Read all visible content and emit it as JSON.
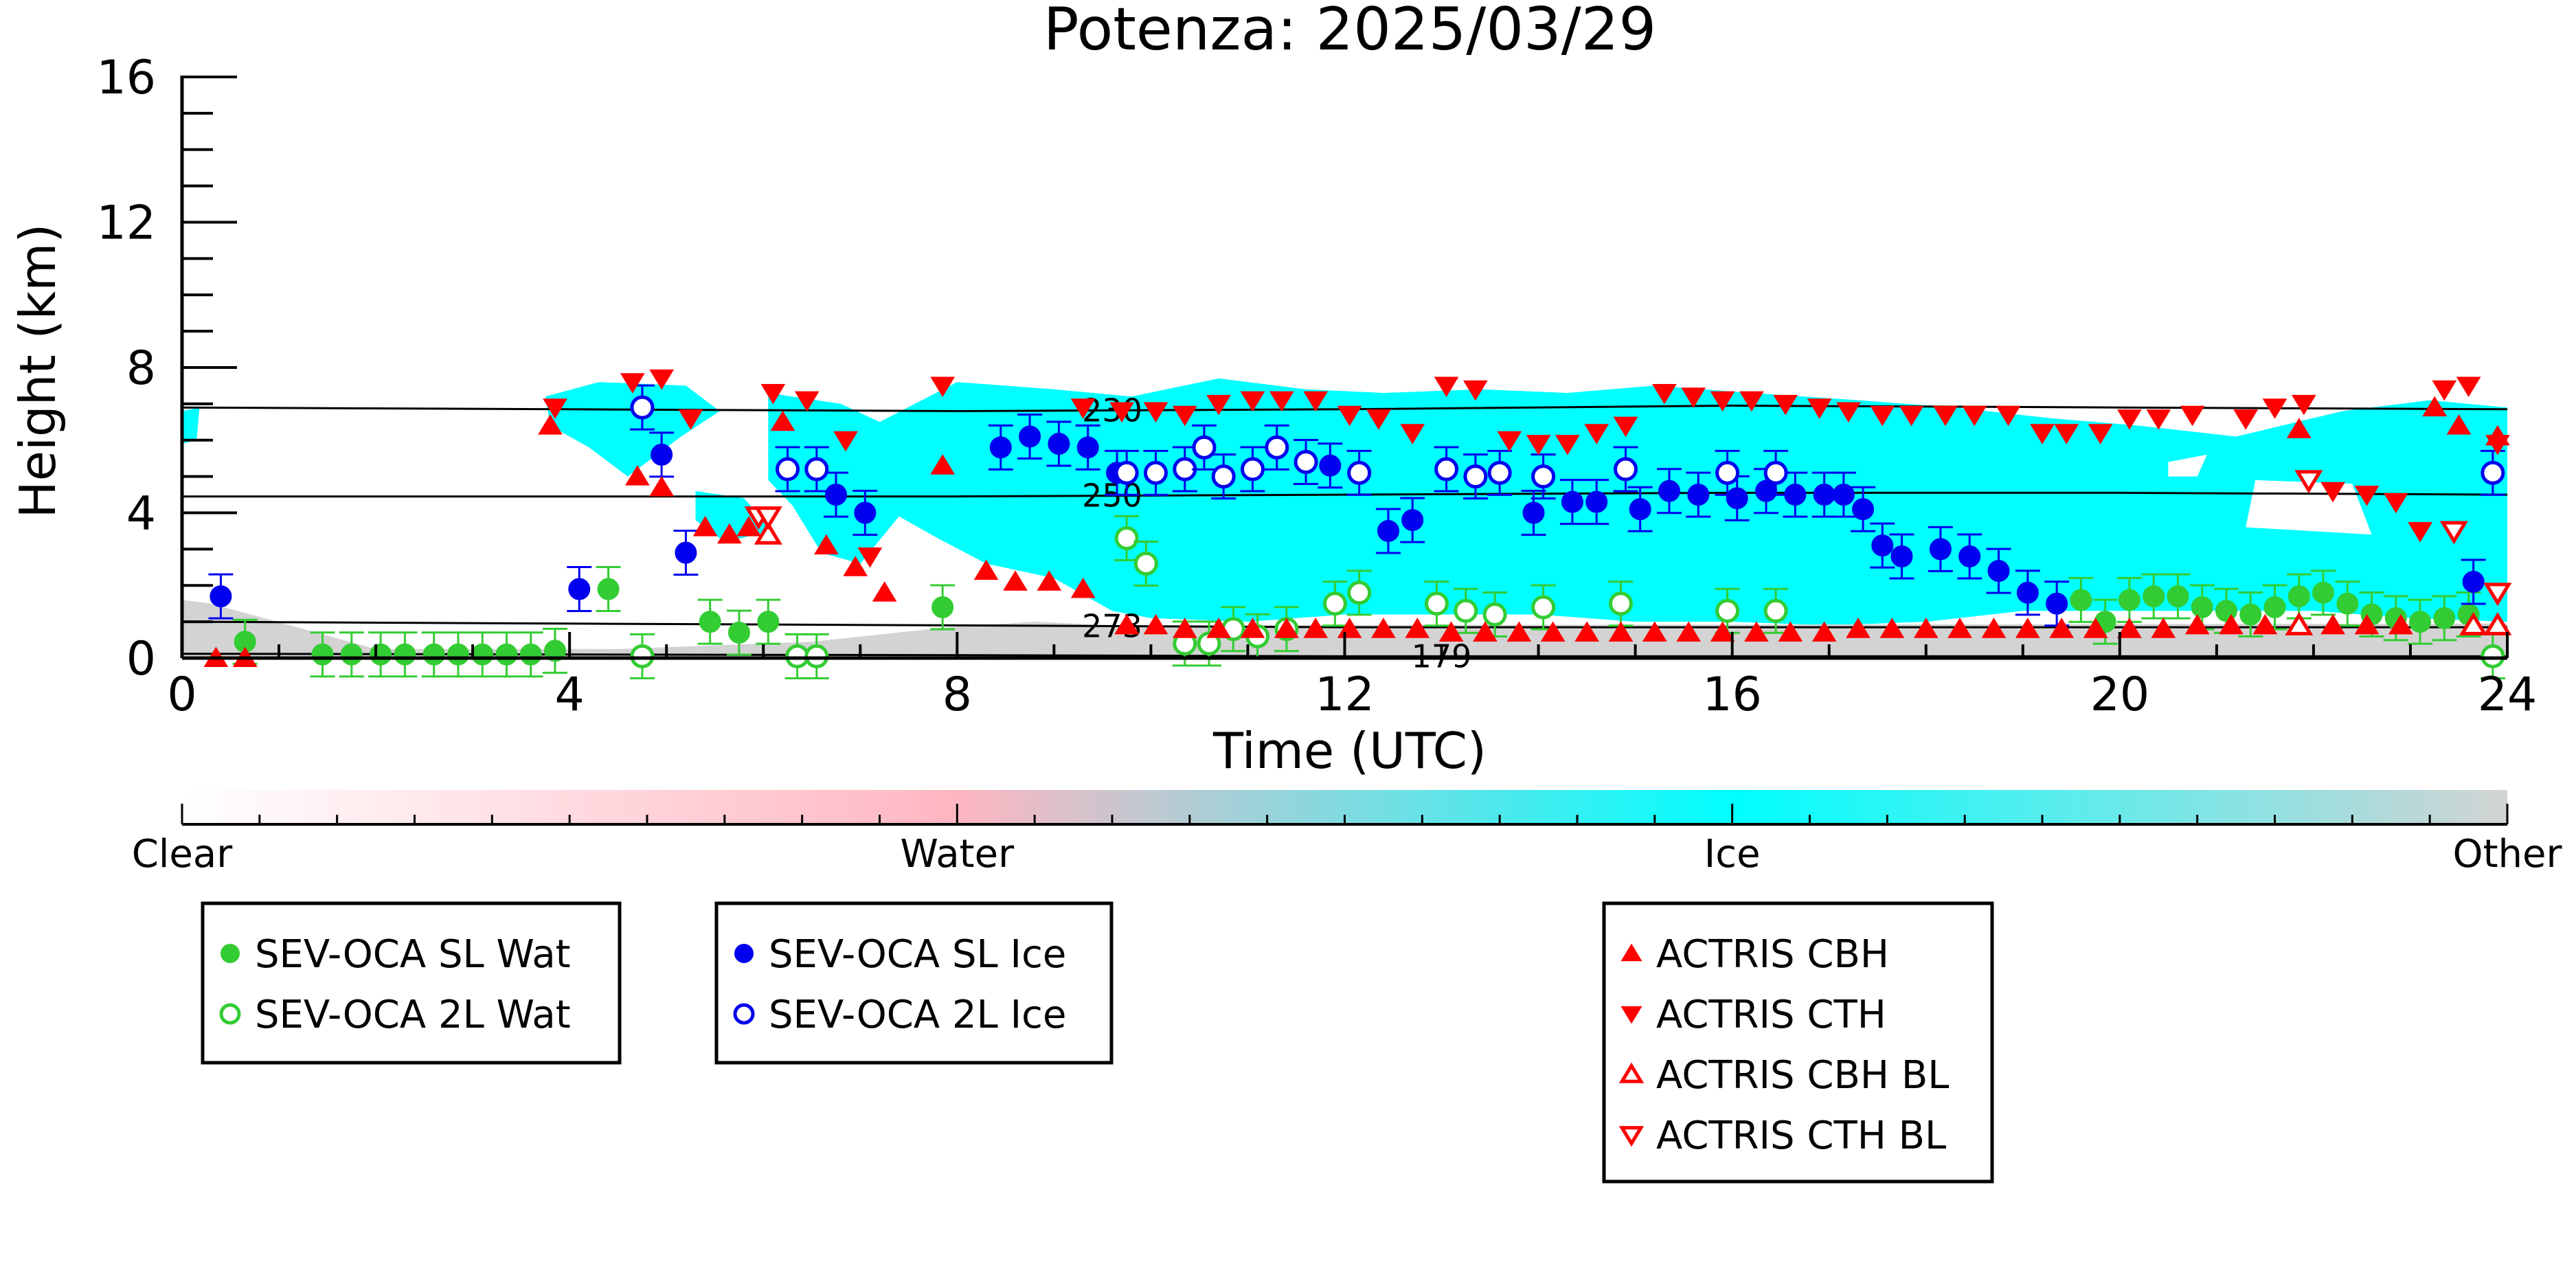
{
  "chart_data": {
    "type": "scatter",
    "title": "Potenza: 2025/03/29",
    "xlabel": "Time (UTC)",
    "ylabel": "Height (km)",
    "xlim": [
      0,
      24
    ],
    "ylim": [
      0,
      16
    ],
    "xticks": [
      0,
      4,
      8,
      12,
      16,
      20,
      24
    ],
    "yticks": [
      0,
      4,
      8,
      12,
      16
    ],
    "background": "cloud phase classification (Clear / Water / Ice / Other) shaded behind the markers",
    "isotherms": [
      {
        "label": "230",
        "label_x": 9.6,
        "x": [
          0,
          4,
          8,
          12,
          16,
          20,
          24
        ],
        "y": [
          6.9,
          6.85,
          6.8,
          6.85,
          6.95,
          6.9,
          6.85
        ]
      },
      {
        "label": "250",
        "label_x": 9.6,
        "x": [
          0,
          4,
          8,
          12,
          16,
          20,
          24
        ],
        "y": [
          4.45,
          4.45,
          4.45,
          4.5,
          4.55,
          4.55,
          4.5
        ]
      },
      {
        "label": "273",
        "label_x": 9.6,
        "x": [
          0,
          4,
          8,
          12,
          16,
          20,
          24
        ],
        "y": [
          1.0,
          0.95,
          0.9,
          0.85,
          0.85,
          0.85,
          0.85
        ]
      },
      {
        "label": "179",
        "label_x": 13.0,
        "x": [
          0,
          4,
          8,
          12,
          16,
          20,
          24
        ],
        "y": [
          0.12,
          0.1,
          0.08,
          0.05,
          0.05,
          0.05,
          0.05
        ]
      }
    ],
    "series": [
      {
        "name": "SEV-OCA SL Wat",
        "x": [
          0.65,
          1.45,
          1.75,
          2.05,
          2.3,
          2.6,
          2.85,
          3.1,
          3.35,
          3.6,
          3.85,
          4.4,
          5.45,
          5.75,
          6.05,
          7.85,
          19.6,
          19.85,
          20.1,
          20.35,
          20.6,
          20.85,
          21.1,
          21.35,
          21.6,
          21.85,
          22.1,
          22.35,
          22.6,
          22.85,
          23.1,
          23.35,
          23.6
        ],
        "y": [
          0.45,
          0.1,
          0.1,
          0.1,
          0.1,
          0.1,
          0.1,
          0.1,
          0.1,
          0.1,
          0.2,
          1.9,
          1.0,
          0.7,
          1.0,
          1.4,
          1.6,
          1.0,
          1.6,
          1.7,
          1.7,
          1.4,
          1.3,
          1.2,
          1.4,
          1.7,
          1.8,
          1.5,
          1.2,
          1.1,
          1.0,
          1.1,
          1.2
        ]
      },
      {
        "name": "SEV-OCA 2L Wat",
        "x": [
          4.75,
          6.35,
          6.55,
          9.75,
          9.95,
          10.35,
          10.6,
          10.85,
          11.1,
          11.4,
          11.9,
          12.15,
          12.95,
          13.25,
          13.55,
          14.05,
          14.85,
          15.95,
          16.45,
          23.85
        ],
        "y": [
          0.05,
          0.05,
          0.05,
          3.3,
          2.6,
          0.4,
          0.4,
          0.8,
          0.6,
          0.8,
          1.5,
          1.8,
          1.5,
          1.3,
          1.2,
          1.4,
          1.5,
          1.3,
          1.3,
          0.05
        ]
      },
      {
        "name": "SEV-OCA SL Ice",
        "x": [
          0.4,
          4.1,
          4.95,
          5.2,
          6.75,
          7.05,
          8.45,
          8.75,
          9.05,
          9.35,
          9.65,
          11.85,
          12.45,
          12.7,
          13.95,
          14.35,
          14.6,
          15.05,
          15.35,
          15.65,
          16.05,
          16.35,
          16.65,
          16.95,
          17.15,
          17.35,
          17.55,
          17.75,
          18.15,
          18.45,
          18.75,
          19.05,
          19.35,
          23.65
        ],
        "y": [
          1.7,
          1.9,
          5.6,
          2.9,
          4.5,
          4.0,
          5.8,
          6.1,
          5.9,
          5.8,
          5.1,
          5.3,
          3.5,
          3.8,
          4.0,
          4.3,
          4.3,
          4.1,
          4.6,
          4.5,
          4.4,
          4.6,
          4.5,
          4.5,
          4.5,
          4.1,
          3.1,
          2.8,
          3.0,
          2.8,
          2.4,
          1.8,
          1.5,
          2.1
        ]
      },
      {
        "name": "SEV-OCA 2L Ice",
        "x": [
          4.75,
          6.25,
          6.55,
          9.75,
          10.05,
          10.35,
          10.55,
          10.75,
          11.05,
          11.3,
          11.6,
          12.15,
          13.05,
          13.35,
          13.6,
          14.05,
          14.9,
          15.95,
          16.45,
          23.85
        ],
        "y": [
          6.9,
          5.2,
          5.2,
          5.1,
          5.1,
          5.2,
          5.8,
          5.0,
          5.2,
          5.8,
          5.4,
          5.1,
          5.2,
          5.0,
          5.1,
          5.0,
          5.2,
          5.1,
          5.1,
          5.1
        ]
      },
      {
        "name": "ACTRIS CBH",
        "x": [
          0.35,
          0.65,
          3.8,
          4.7,
          4.95,
          5.4,
          5.65,
          5.85,
          6.2,
          6.65,
          6.95,
          7.25,
          7.85,
          8.3,
          8.6,
          8.95,
          9.3,
          9.75,
          10.05,
          10.35,
          10.7,
          11.05,
          11.4,
          11.7,
          12.05,
          12.4,
          12.75,
          13.1,
          13.45,
          13.8,
          14.15,
          14.5,
          14.85,
          15.2,
          15.55,
          15.9,
          16.25,
          16.6,
          16.95,
          17.3,
          17.65,
          18.0,
          18.35,
          18.7,
          19.05,
          19.4,
          19.75,
          20.1,
          20.45,
          20.8,
          21.15,
          21.5,
          21.85,
          22.2,
          22.55,
          22.9,
          23.25,
          23.5,
          23.9
        ],
        "y": [
          0.0,
          0.0,
          6.4,
          5.0,
          4.7,
          3.6,
          3.4,
          3.6,
          6.5,
          3.1,
          2.5,
          1.8,
          5.3,
          2.4,
          2.1,
          2.1,
          1.9,
          0.9,
          0.9,
          0.8,
          0.8,
          0.8,
          0.8,
          0.8,
          0.8,
          0.8,
          0.8,
          0.7,
          0.7,
          0.7,
          0.7,
          0.7,
          0.7,
          0.7,
          0.7,
          0.7,
          0.7,
          0.7,
          0.7,
          0.8,
          0.8,
          0.8,
          0.8,
          0.8,
          0.8,
          0.8,
          0.8,
          0.8,
          0.8,
          0.9,
          0.9,
          0.9,
          6.3,
          0.9,
          0.9,
          0.9,
          6.9,
          6.4,
          6.1
        ]
      },
      {
        "name": "ACTRIS CTH",
        "x": [
          3.85,
          4.65,
          4.95,
          5.25,
          6.1,
          6.45,
          6.85,
          7.1,
          7.85,
          9.3,
          9.7,
          10.05,
          10.35,
          10.7,
          11.05,
          11.35,
          11.7,
          12.05,
          12.35,
          12.7,
          13.05,
          13.35,
          13.7,
          14.0,
          14.3,
          14.6,
          14.9,
          15.3,
          15.6,
          15.9,
          16.2,
          16.55,
          16.9,
          17.2,
          17.55,
          17.85,
          18.2,
          18.5,
          18.85,
          19.2,
          19.45,
          19.8,
          20.1,
          20.4,
          20.75,
          21.3,
          21.6,
          21.9,
          22.2,
          22.55,
          22.85,
          23.1,
          23.35,
          23.6,
          23.9
        ],
        "y": [
          6.9,
          7.6,
          7.7,
          6.6,
          7.3,
          7.1,
          6.0,
          2.8,
          7.5,
          6.9,
          6.8,
          6.8,
          6.7,
          7.0,
          7.1,
          7.1,
          7.1,
          6.7,
          6.6,
          6.2,
          7.5,
          7.4,
          6.0,
          5.9,
          5.9,
          6.2,
          6.4,
          7.3,
          7.2,
          7.1,
          7.1,
          7.0,
          6.9,
          6.8,
          6.7,
          6.7,
          6.7,
          6.7,
          6.7,
          6.2,
          6.2,
          6.2,
          6.6,
          6.6,
          6.7,
          6.6,
          6.9,
          7.0,
          4.6,
          4.5,
          4.3,
          3.5,
          7.4,
          7.5,
          5.9
        ]
      },
      {
        "name": "ACTRIS CBH BL",
        "x": [
          6.05,
          21.85,
          23.65,
          23.9
        ],
        "y": [
          3.4,
          0.9,
          0.9,
          0.9
        ]
      },
      {
        "name": "ACTRIS CTH BL",
        "x": [
          5.95,
          6.05,
          21.95,
          23.45,
          23.9
        ],
        "y": [
          3.9,
          3.9,
          4.9,
          3.5,
          1.8
        ]
      }
    ],
    "colorbar": {
      "ticks": [
        "Clear",
        "Water",
        "Ice",
        "Other"
      ],
      "colors": [
        "#ffffff",
        "#ffb6c1",
        "#00ffff",
        "#d3d3d3"
      ]
    },
    "legends": [
      {
        "entries": [
          "SEV-OCA SL Wat",
          "SEV-OCA 2L Wat"
        ]
      },
      {
        "entries": [
          "SEV-OCA SL Ice",
          "SEV-OCA 2L Ice"
        ]
      },
      {
        "entries": [
          "ACTRIS CBH",
          "ACTRIS CTH",
          "ACTRIS CBH BL",
          "ACTRIS CTH BL"
        ]
      }
    ],
    "grid": false
  },
  "colors": {
    "water": "#33cc33",
    "ice_marker": "#0000ee",
    "actris": "#ff0000",
    "ice_shade": "#00ffff",
    "other_shade": "#d3d3d3",
    "axis": "#000000"
  }
}
